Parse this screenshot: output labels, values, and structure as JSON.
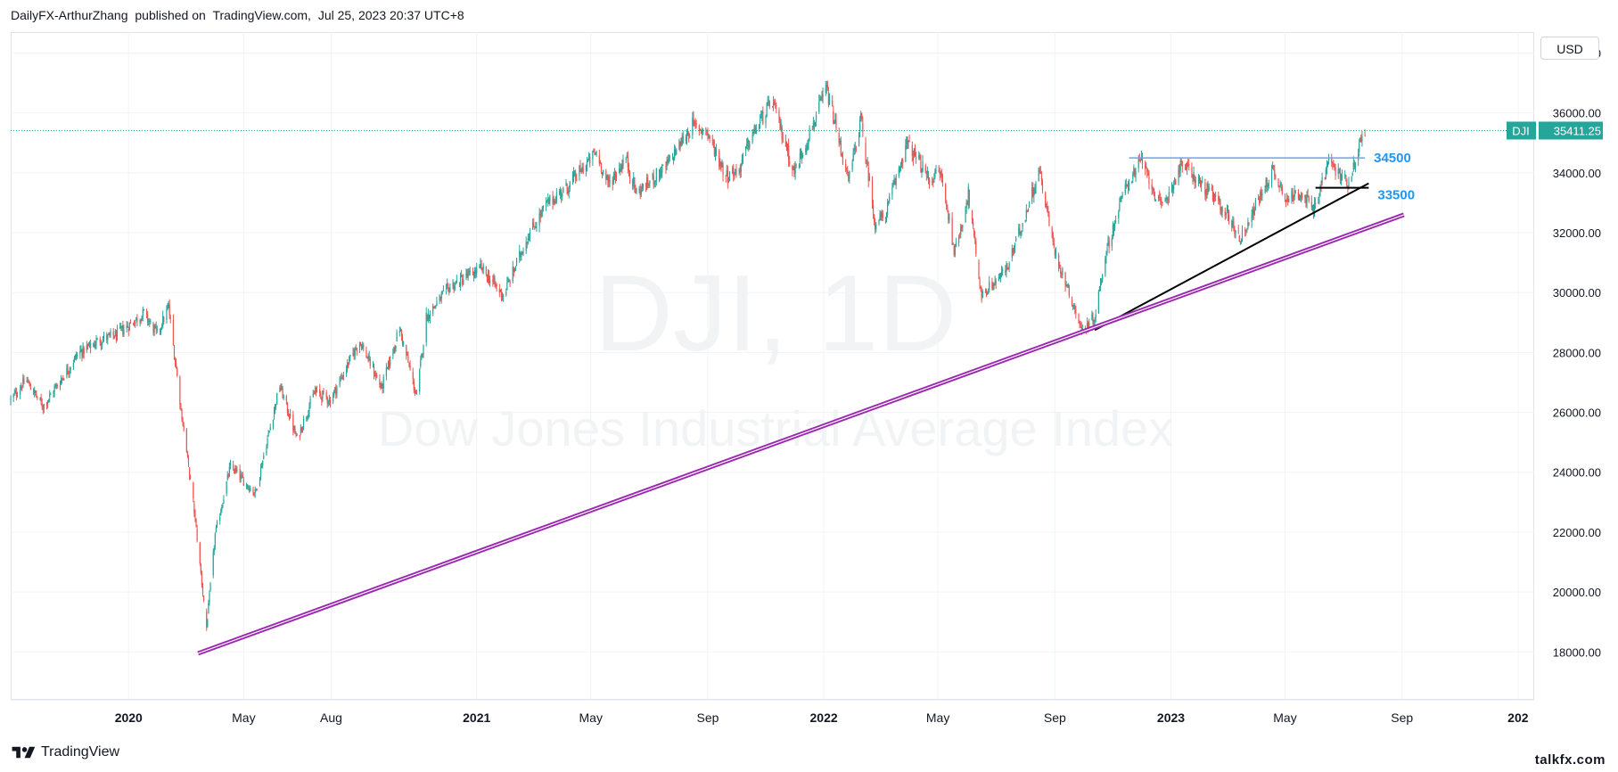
{
  "header": {
    "author": "DailyFX-ArthurZhang",
    "published_text": "published on",
    "platform": "TradingView.com,",
    "datetime": "Jul 25, 2023 20:37 UTC+8"
  },
  "currency": "USD",
  "footer": {
    "brand": "TradingView",
    "site": "talkfx.com"
  },
  "chart_data": {
    "type": "line",
    "chart_style": "candlestick",
    "watermark": {
      "symbol": "DJI, 1D",
      "name": "Dow Jones Industrial Average Index"
    },
    "symbol_label": "DJI",
    "last_price": 35411.25,
    "last_price_text": "35411.25",
    "ylim": [
      16400,
      38700
    ],
    "xlim": [
      "2019-08-30",
      "2024-01-18"
    ],
    "y_ticks": [
      "18000.00",
      "20000.00",
      "22000.00",
      "24000.00",
      "26000.00",
      "28000.00",
      "30000.00",
      "32000.00",
      "34000.00",
      "36000.00",
      "38000.00"
    ],
    "x_ticks": [
      {
        "label": "2020",
        "date": "2020-01-01",
        "bold": true
      },
      {
        "label": "May",
        "date": "2020-05-01",
        "bold": false
      },
      {
        "label": "Aug",
        "date": "2020-08-01",
        "bold": false
      },
      {
        "label": "2021",
        "date": "2021-01-01",
        "bold": true
      },
      {
        "label": "May",
        "date": "2021-05-01",
        "bold": false
      },
      {
        "label": "Sep",
        "date": "2021-09-01",
        "bold": false
      },
      {
        "label": "2022",
        "date": "2022-01-01",
        "bold": true
      },
      {
        "label": "May",
        "date": "2022-05-01",
        "bold": false
      },
      {
        "label": "Sep",
        "date": "2022-09-01",
        "bold": false
      },
      {
        "label": "2023",
        "date": "2023-01-01",
        "bold": true
      },
      {
        "label": "May",
        "date": "2023-05-01",
        "bold": false
      },
      {
        "label": "Sep",
        "date": "2023-09-01",
        "bold": false
      },
      {
        "label": "202",
        "date": "2024-01-01",
        "bold": true
      }
    ],
    "series": [
      {
        "x": [
          "2019-08-30",
          "2019-09-15",
          "2019-10-03",
          "2019-10-20",
          "2019-11-10",
          "2019-12-01",
          "2019-12-20",
          "2020-01-17",
          "2020-01-31",
          "2020-02-12",
          "2020-02-28",
          "2020-03-09",
          "2020-03-23",
          "2020-04-01",
          "2020-04-17",
          "2020-05-13",
          "2020-06-08",
          "2020-06-26",
          "2020-07-15",
          "2020-07-31",
          "2020-08-31",
          "2020-09-23",
          "2020-10-12",
          "2020-10-30",
          "2020-11-09",
          "2020-12-04",
          "2021-01-06",
          "2021-01-29",
          "2021-02-24",
          "2021-03-17",
          "2021-04-06",
          "2021-05-07",
          "2021-05-19",
          "2021-06-07",
          "2021-06-18",
          "2021-07-19",
          "2021-08-16",
          "2021-08-31",
          "2021-09-20",
          "2021-10-04",
          "2021-10-15",
          "2021-11-08",
          "2021-12-01",
          "2022-01-04",
          "2022-01-27",
          "2022-02-09",
          "2022-02-24",
          "2022-03-07",
          "2022-03-29",
          "2022-04-22",
          "2022-05-04",
          "2022-05-19",
          "2022-06-02",
          "2022-06-16",
          "2022-07-13",
          "2022-08-16",
          "2022-08-31",
          "2022-09-30",
          "2022-10-13",
          "2022-10-25",
          "2022-11-15",
          "2022-12-01",
          "2022-12-22",
          "2023-01-13",
          "2023-02-02",
          "2023-02-28",
          "2023-03-15",
          "2023-03-27",
          "2023-04-18",
          "2023-05-04",
          "2023-05-18",
          "2023-05-31",
          "2023-06-16",
          "2023-06-28",
          "2023-07-07",
          "2023-07-19",
          "2023-07-24"
        ],
        "values": [
          26400,
          27100,
          26200,
          27000,
          28000,
          28400,
          28600,
          29300,
          28600,
          29500,
          25400,
          23000,
          18800,
          21900,
          24200,
          23300,
          26900,
          25100,
          26700,
          26400,
          28400,
          26800,
          28800,
          26500,
          29200,
          30200,
          30800,
          29900,
          31900,
          33000,
          33500,
          34700,
          33600,
          34500,
          33300,
          34200,
          35600,
          35400,
          33900,
          34100,
          35100,
          36400,
          34000,
          36800,
          33700,
          35800,
          32300,
          32600,
          35000,
          33800,
          34000,
          31300,
          33300,
          29900,
          30800,
          34100,
          31500,
          28700,
          29200,
          31400,
          33600,
          34400,
          32800,
          34300,
          33600,
          32700,
          31800,
          32600,
          34100,
          33100,
          33400,
          32700,
          34400,
          33900,
          33700,
          35000,
          35411
        ]
      }
    ],
    "annotations": [
      {
        "type": "horizontal_level",
        "label": "34500",
        "value": 34500,
        "x_start": "2022-11-18",
        "x_end": "2023-07-24",
        "color": "#6ea3e8"
      },
      {
        "type": "horizontal_level",
        "label": "33500",
        "value": 33500,
        "x_start": "2023-06-02",
        "x_end": "2023-07-28",
        "color": "#000000"
      },
      {
        "type": "trendline",
        "from": {
          "x": "2022-10-13",
          "y": 28750
        },
        "to": {
          "x": "2023-07-28",
          "y": 33650
        },
        "color": "#000000"
      },
      {
        "type": "trendline",
        "from": {
          "x": "2020-03-14",
          "y": 17950
        },
        "to": {
          "x": "2023-09-03",
          "y": 32600
        },
        "color": "#9c27b0",
        "double": true
      }
    ],
    "colors": {
      "up": "#26a69a",
      "down": "#ef5350",
      "last_price": "#26a69a",
      "level_label": "#2196f3",
      "grid": "#f0f3fa"
    }
  }
}
